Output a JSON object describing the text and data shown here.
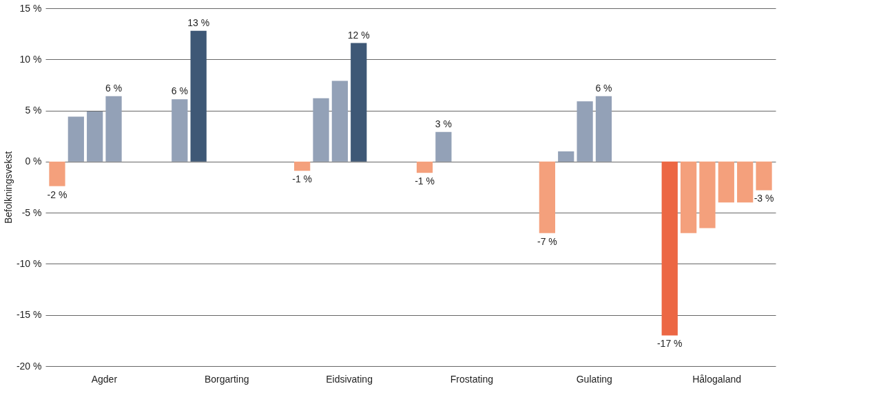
{
  "chart_data": {
    "type": "bar",
    "ylabel": "Befolkningsvekst",
    "categories": [
      "Agder",
      "Borgarting",
      "Eidsivating",
      "Frostating",
      "Gulating",
      "Hålogaland"
    ],
    "series": [
      {
        "colors": [
          "#f4a07c",
          "#93a1b7",
          "#f4a07c",
          "#f4a07c",
          "#f4a07c",
          "#ec6744"
        ],
        "values": [
          -2.4,
          6.1,
          -0.9,
          -1.1,
          -7.0,
          -17.0
        ],
        "value_labels": [
          "-2 %",
          "6 %",
          "-1 %",
          "-1 %",
          "-7 %",
          "-17 %"
        ]
      },
      {
        "colors": [
          "#93a1b7",
          "#3e5876",
          "#93a1b7",
          "#93a1b7",
          "#93a1b7",
          "#f4a07c"
        ],
        "values": [
          4.4,
          12.8,
          6.2,
          2.9,
          1.0,
          -7.0
        ],
        "value_labels": [
          null,
          "13 %",
          null,
          "3 %",
          null,
          null
        ]
      },
      {
        "colors": [
          "#93a1b7",
          null,
          "#93a1b7",
          null,
          "#93a1b7",
          "#f4a07c"
        ],
        "values": [
          4.9,
          null,
          7.9,
          null,
          5.9,
          -6.5
        ],
        "value_labels": [
          null,
          null,
          null,
          null,
          null,
          null
        ]
      },
      {
        "colors": [
          "#93a1b7",
          null,
          "#3e5876",
          null,
          "#93a1b7",
          "#f4a07c"
        ],
        "values": [
          6.4,
          null,
          11.6,
          null,
          6.4,
          -4.0
        ],
        "value_labels": [
          "6 %",
          null,
          "12 %",
          null,
          "6 %",
          null
        ]
      },
      {
        "colors": [
          null,
          null,
          null,
          null,
          null,
          "#f4a07c"
        ],
        "values": [
          null,
          null,
          null,
          null,
          null,
          -4.0
        ],
        "value_labels": [
          null,
          null,
          null,
          null,
          null,
          null
        ]
      },
      {
        "colors": [
          null,
          null,
          null,
          null,
          null,
          "#f4a07c"
        ],
        "values": [
          null,
          null,
          null,
          null,
          null,
          -2.8
        ],
        "value_labels": [
          null,
          null,
          null,
          null,
          null,
          "-3 %"
        ]
      }
    ],
    "ylim": [
      -20,
      15
    ],
    "yticks": [
      {
        "value": -20,
        "label": "-20 %"
      },
      {
        "value": -15,
        "label": "-15 %"
      },
      {
        "value": -10,
        "label": "-10 %"
      },
      {
        "value": -5,
        "label": "-5 %"
      },
      {
        "value": 0,
        "label": "0 %"
      },
      {
        "value": 5,
        "label": "5 %"
      },
      {
        "value": 10,
        "label": "10 %"
      },
      {
        "value": 15,
        "label": "15 %"
      }
    ],
    "grid": "y"
  }
}
